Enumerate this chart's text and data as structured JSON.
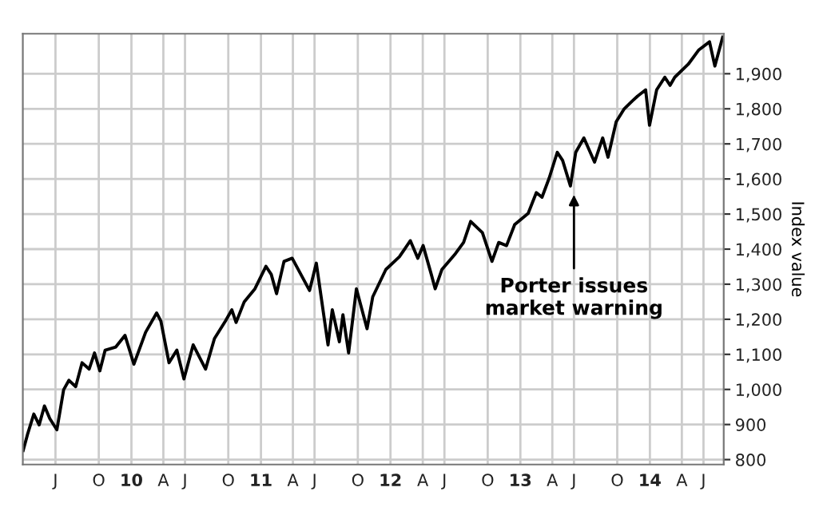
{
  "chart_data": {
    "type": "line",
    "ylabel": "Index value",
    "x": [
      "2009-03-02",
      "2009-03-14",
      "2009-04-01",
      "2009-04-16",
      "2009-05-01",
      "2009-05-16",
      "2009-06-05",
      "2009-06-24",
      "2009-07-09",
      "2009-07-28",
      "2009-08-15",
      "2009-09-04",
      "2009-09-19",
      "2009-10-04",
      "2009-10-19",
      "2009-11-18",
      "2009-12-14",
      "2010-01-08",
      "2010-02-10",
      "2010-03-13",
      "2010-03-25",
      "2010-04-17",
      "2010-05-09",
      "2010-05-29",
      "2010-06-24",
      "2010-07-29",
      "2010-08-23",
      "2010-09-23",
      "2010-10-11",
      "2010-10-23",
      "2010-11-15",
      "2010-12-15",
      "2011-01-15",
      "2011-01-30",
      "2011-02-14",
      "2011-03-07",
      "2011-03-30",
      "2011-05-18",
      "2011-06-06",
      "2011-07-09",
      "2011-07-21",
      "2011-08-10",
      "2011-08-20",
      "2011-09-05",
      "2011-09-27",
      "2011-10-27",
      "2011-11-12",
      "2011-12-19",
      "2012-01-26",
      "2012-02-26",
      "2012-03-18",
      "2012-04-02",
      "2012-04-25",
      "2012-05-06",
      "2012-05-25",
      "2012-07-02",
      "2012-07-25",
      "2012-08-14",
      "2012-09-16",
      "2012-10-13",
      "2012-11-01",
      "2012-11-23",
      "2012-12-16",
      "2013-01-23",
      "2013-02-15",
      "2013-03-03",
      "2013-03-23",
      "2013-04-15",
      "2013-04-30",
      "2013-05-22",
      "2013-06-06",
      "2013-06-29",
      "2013-07-29",
      "2013-08-21",
      "2013-09-05",
      "2013-09-28",
      "2013-10-20",
      "2013-11-12",
      "2013-11-27",
      "2013-12-20",
      "2013-12-31",
      "2014-01-20",
      "2014-02-12",
      "2014-02-27",
      "2014-03-12",
      "2014-04-19",
      "2014-05-19",
      "2014-06-18",
      "2014-07-03",
      "2014-07-25"
    ],
    "series": [
      {
        "color": "#000000",
        "values": [
          826,
          871,
          930,
          899,
          953,
          917,
          885,
          999,
          1026,
          1008,
          1076,
          1058,
          1104,
          1053,
          1112,
          1121,
          1154,
          1072,
          1163,
          1218,
          1195,
          1076,
          1112,
          1030,
          1127,
          1058,
          1145,
          1195,
          1227,
          1191,
          1250,
          1287,
          1351,
          1328,
          1273,
          1365,
          1374,
          1282,
          1360,
          1127,
          1227,
          1136,
          1213,
          1104,
          1287,
          1173,
          1264,
          1342,
          1378,
          1424,
          1374,
          1410,
          1328,
          1287,
          1342,
          1387,
          1419,
          1479,
          1447,
          1365,
          1419,
          1410,
          1470,
          1502,
          1561,
          1548,
          1602,
          1676,
          1653,
          1580,
          1676,
          1717,
          1648,
          1717,
          1662,
          1763,
          1799,
          1822,
          1836,
          1854,
          1753,
          1854,
          1890,
          1867,
          1890,
          1927,
          1968,
          1991,
          1922,
          2004
        ]
      }
    ],
    "xlim": [
      "2009-03-01",
      "2014-07-28"
    ],
    "xticks": [
      {
        "value": "2009-06-01",
        "label": "J"
      },
      {
        "value": "2009-10-01",
        "label": "O"
      },
      {
        "value": "2010-01-01",
        "label": "10"
      },
      {
        "value": "2010-04-01",
        "label": "A"
      },
      {
        "value": "2010-06-01",
        "label": "J"
      },
      {
        "value": "2010-10-01",
        "label": "O"
      },
      {
        "value": "2011-01-01",
        "label": "11"
      },
      {
        "value": "2011-04-01",
        "label": "A"
      },
      {
        "value": "2011-06-01",
        "label": "J"
      },
      {
        "value": "2011-10-01",
        "label": "O"
      },
      {
        "value": "2012-01-01",
        "label": "12"
      },
      {
        "value": "2012-04-01",
        "label": "A"
      },
      {
        "value": "2012-06-01",
        "label": "J"
      },
      {
        "value": "2012-10-01",
        "label": "O"
      },
      {
        "value": "2013-01-01",
        "label": "13"
      },
      {
        "value": "2013-04-01",
        "label": "A"
      },
      {
        "value": "2013-06-01",
        "label": "J"
      },
      {
        "value": "2013-10-01",
        "label": "O"
      },
      {
        "value": "2014-01-01",
        "label": "14"
      },
      {
        "value": "2014-04-01",
        "label": "A"
      },
      {
        "value": "2014-06-01",
        "label": "J"
      }
    ],
    "ylim": [
      786,
      2014
    ],
    "yticks": [
      800,
      900,
      {
        "value": 1000,
        "label": "1,000"
      },
      {
        "value": 1100,
        "label": "1,100"
      },
      {
        "value": 1200,
        "label": "1,200"
      },
      {
        "value": 1300,
        "label": "1,300"
      },
      {
        "value": 1400,
        "label": "1,400"
      },
      {
        "value": 1500,
        "label": "1,500"
      },
      {
        "value": 1600,
        "label": "1,600"
      },
      {
        "value": 1700,
        "label": "1,700"
      },
      {
        "value": 1800,
        "label": "1,800"
      },
      {
        "value": 1900,
        "label": "1,900"
      }
    ],
    "grid": true,
    "marker": "none",
    "line_style": "solid",
    "annotations": [
      {
        "text": "Porter issues\nmarket warning",
        "x": "2013-06-01",
        "y": 1555
      }
    ]
  }
}
